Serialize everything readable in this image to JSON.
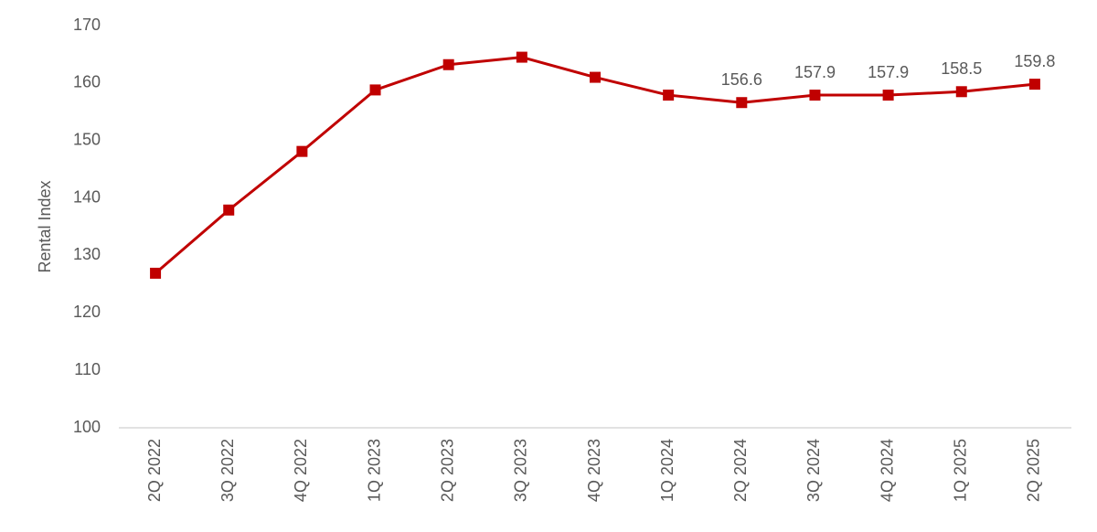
{
  "chart_data": {
    "type": "line",
    "y_label": "Rental Index",
    "categories": [
      "2Q 2022",
      "3Q 2022",
      "4Q 2022",
      "1Q 2023",
      "2Q 2023",
      "3Q 2023",
      "4Q 2023",
      "1Q 2024",
      "2Q 2024",
      "3Q 2024",
      "4Q 2024",
      "1Q 2025",
      "2Q 2025"
    ],
    "values": [
      126.9,
      137.9,
      148.1,
      158.8,
      163.2,
      164.5,
      161.0,
      157.9,
      156.6,
      157.9,
      157.9,
      158.5,
      159.8
    ],
    "value_labels": [
      null,
      null,
      null,
      null,
      null,
      null,
      null,
      null,
      "156.6",
      "157.9",
      "157.9",
      "158.5",
      "159.8"
    ],
    "color": "#c00000",
    "ylim": [
      100,
      170
    ],
    "yticks": [
      100,
      110,
      120,
      130,
      140,
      150,
      160,
      170
    ],
    "grid": false
  }
}
